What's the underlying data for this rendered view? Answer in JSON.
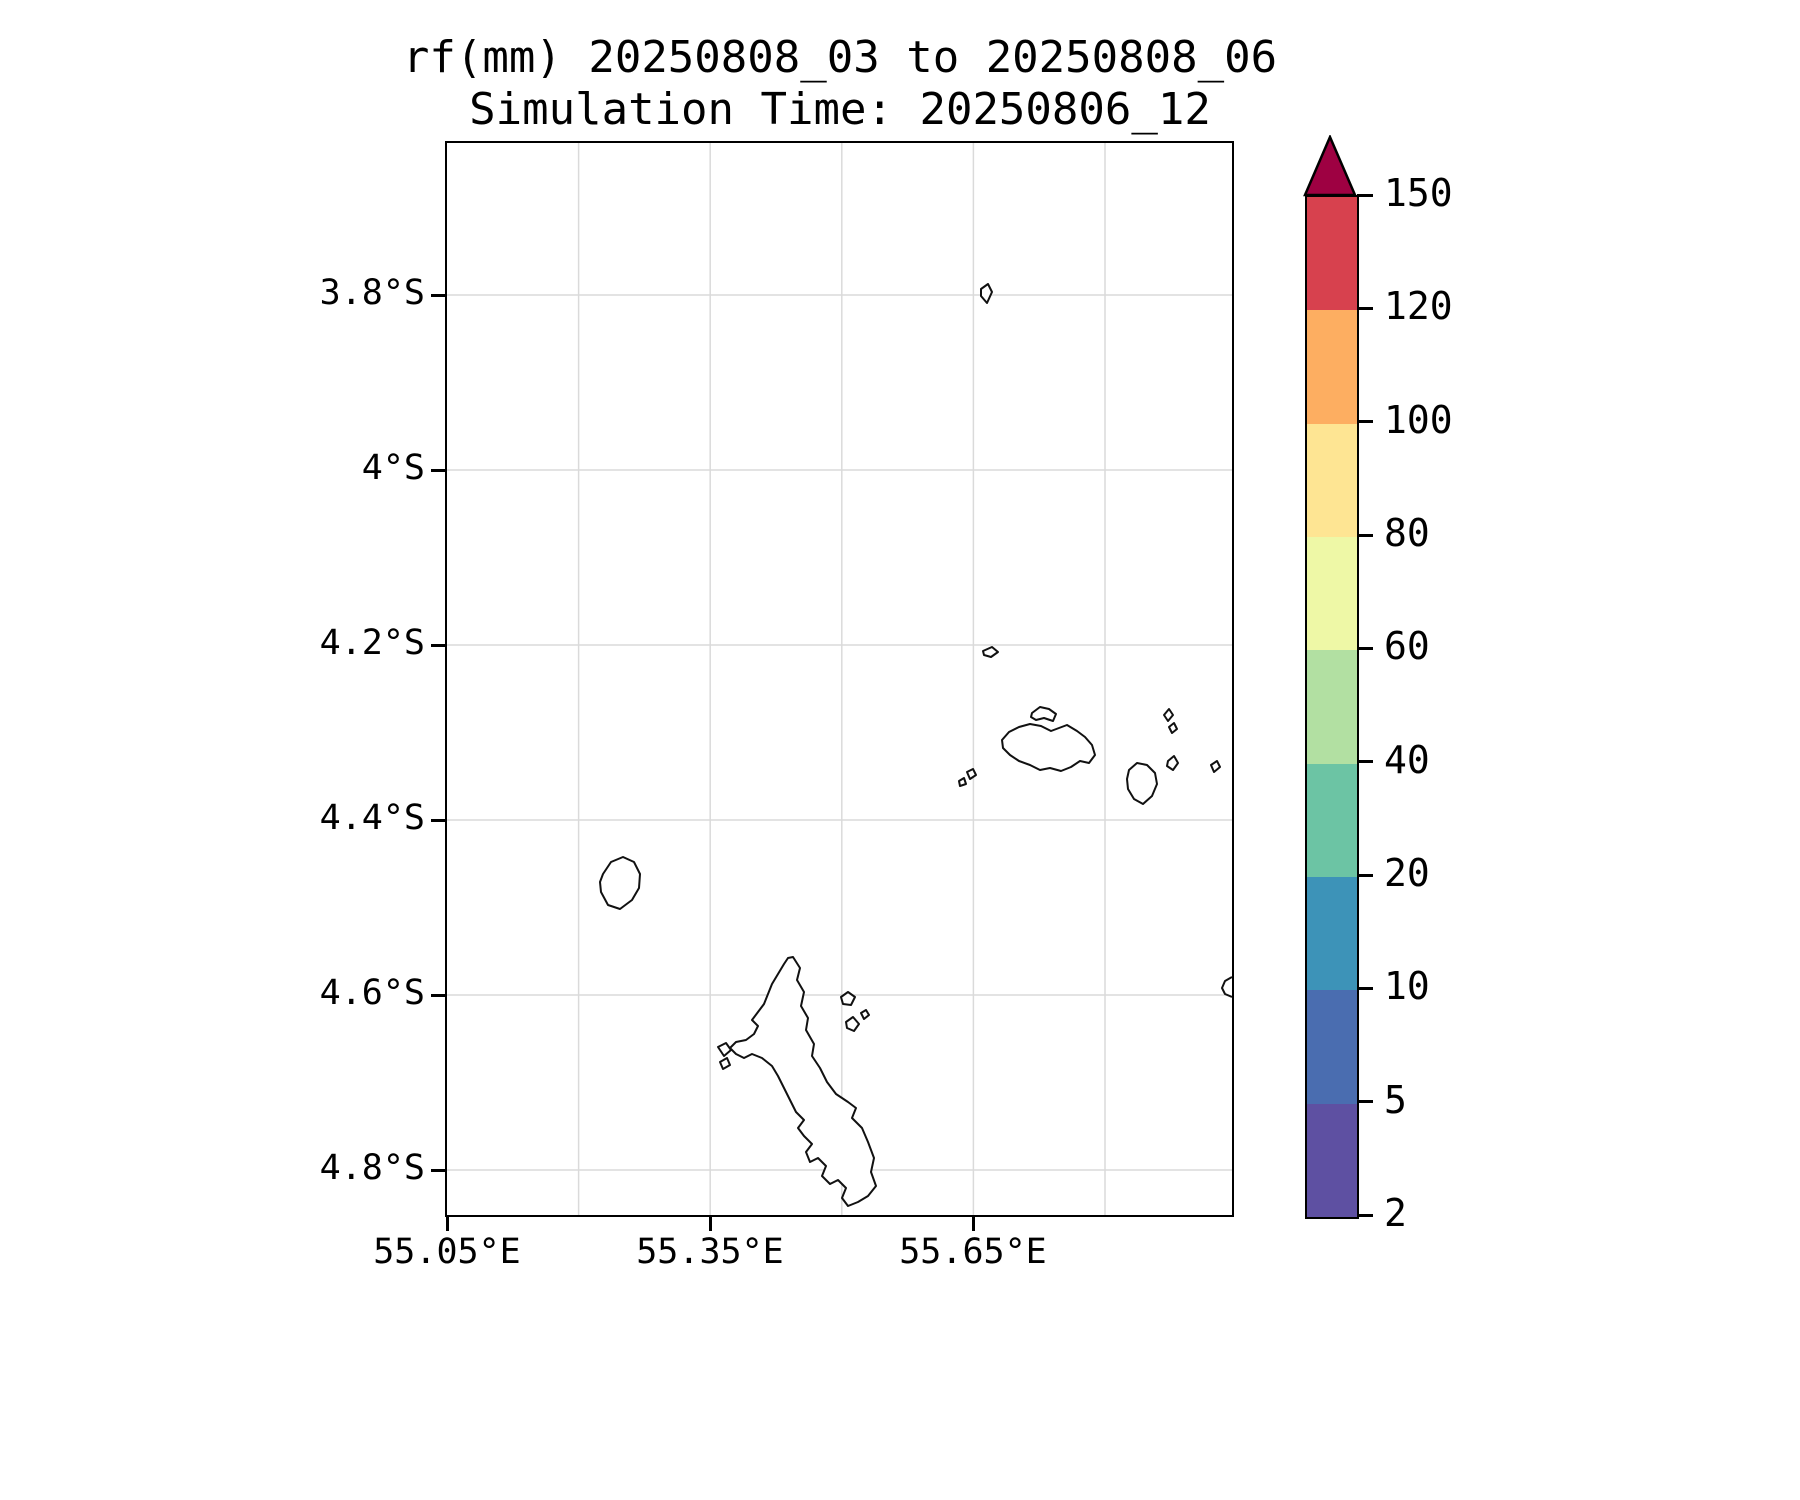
{
  "title": {
    "line1": "rf(mm) 20250808_03 to 20250808_06",
    "line2": "Simulation Time: 20250806_12"
  },
  "chart_data": {
    "type": "map",
    "title": "rf(mm) 20250808_03 to 20250808_06",
    "subtitle": "Simulation Time: 20250806_12",
    "variable": "rf (mm)",
    "region": "Seychelles islands (Mahe, Praslin, La Digue, Silhouette, Denis, Aride, Fregate coastlines)",
    "field_values": "none visible (no rainfall shading inside map domain, coastline outlines only)",
    "grid": true,
    "x_axis": {
      "ticks": [
        "55.05°E",
        "55.35°E",
        "55.65°E"
      ],
      "range": [
        55.05,
        55.95
      ]
    },
    "y_axis": {
      "ticks": [
        "3.8°S",
        "4°S",
        "4.2°S",
        "4.4°S",
        "4.6°S",
        "4.8°S"
      ],
      "range": [
        3.63,
        4.85
      ]
    },
    "colorbar": {
      "levels": [
        2,
        5,
        10,
        20,
        40,
        60,
        80,
        100,
        120,
        150
      ],
      "labels_top_to_bottom": [
        "150",
        "120",
        "100",
        "80",
        "60",
        "40",
        "20",
        "10",
        "5",
        "2"
      ],
      "bands_top_to_bottom": [
        {
          "from": 120,
          "to": 150,
          "color": "#d7414e"
        },
        {
          "from": 100,
          "to": 120,
          "color": "#fdae61"
        },
        {
          "from": 80,
          "to": 100,
          "color": "#fee593"
        },
        {
          "from": 60,
          "to": 80,
          "color": "#eef8a6"
        },
        {
          "from": 40,
          "to": 60,
          "color": "#b2e0a2"
        },
        {
          "from": 20,
          "to": 40,
          "color": "#6cc4a4"
        },
        {
          "from": 10,
          "to": 20,
          "color": "#3d93b8"
        },
        {
          "from": 5,
          "to": 10,
          "color": "#4a6db0"
        },
        {
          "from": 2,
          "to": 5,
          "color": "#5e50a2"
        }
      ],
      "extend_max_color": "#9e0142"
    }
  }
}
